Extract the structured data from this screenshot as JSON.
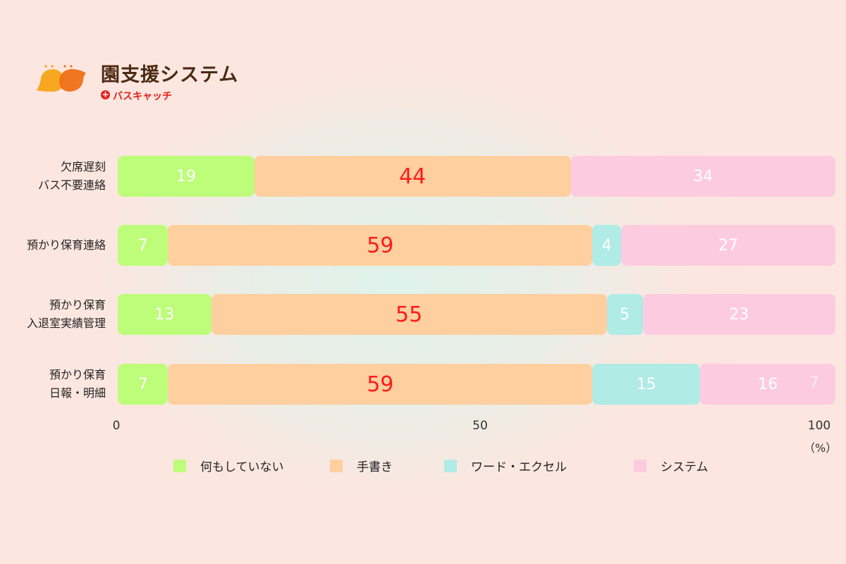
{
  "logo": {
    "title": "園支援システム",
    "subtitle": "バスキャッチ",
    "plus": "+"
  },
  "chart_data": {
    "type": "bar",
    "orientation": "horizontal-stacked",
    "categories": [
      [
        "欠席遅刻",
        "バス不要連絡"
      ],
      [
        "預かり保育連絡"
      ],
      [
        "預かり保育",
        "入退室実績管理"
      ],
      [
        "預かり保育",
        "日報・明細"
      ]
    ],
    "series": [
      {
        "name": "何もしていない",
        "color": "#bdfd7a",
        "values": [
          19,
          7,
          13,
          7
        ]
      },
      {
        "name": "手書き",
        "color": "#ffcf9f",
        "values": [
          44,
          59,
          55,
          59
        ]
      },
      {
        "name": "ワード・エクセル",
        "color": "#b0ebe6",
        "values": [
          null,
          4,
          5,
          15
        ]
      },
      {
        "name": "システム",
        "color": "#fdcbdf",
        "values": [
          34,
          27,
          23,
          16
        ]
      }
    ],
    "xlim": [
      0,
      100
    ],
    "xticks": [
      "0",
      "50",
      "100"
    ],
    "xunit": "（%）",
    "legend": "bottom",
    "annotations": [
      {
        "row": 3,
        "text": "7"
      }
    ]
  }
}
